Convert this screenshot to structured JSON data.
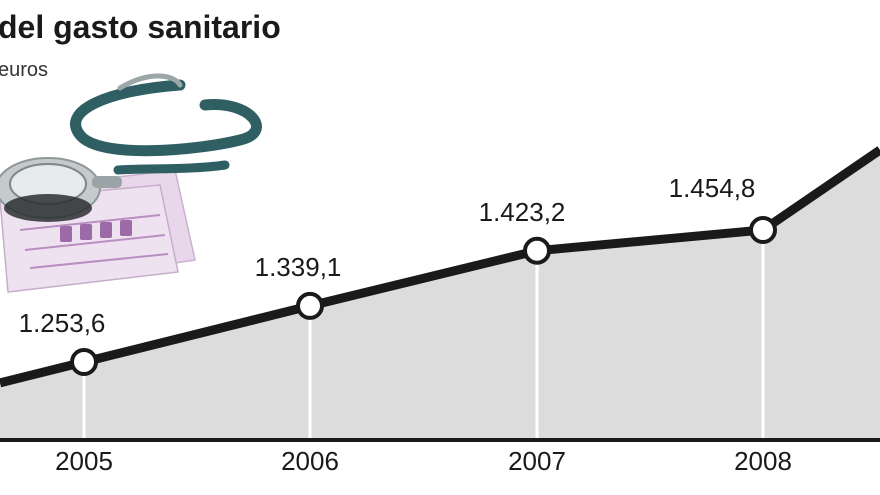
{
  "chart_data": {
    "type": "area",
    "title": "del gasto sanitario",
    "unit_label": "euros",
    "categories": [
      "2005",
      "2006",
      "2007",
      "2008"
    ],
    "values": [
      1253.6,
      1339.1,
      1423.2,
      1454.8
    ],
    "value_labels": [
      "1.253,6",
      "1.339,1",
      "1.423,2",
      "1.454,8"
    ],
    "grid": false,
    "legend": "none",
    "colors": {
      "line": "#1a1a1a",
      "fill": "#dcdcdc",
      "marker_fill": "#ffffff",
      "baseline": "#1a1a1a"
    }
  },
  "illustration": {
    "icon": "stethoscope-on-euro-banknotes-icon"
  }
}
